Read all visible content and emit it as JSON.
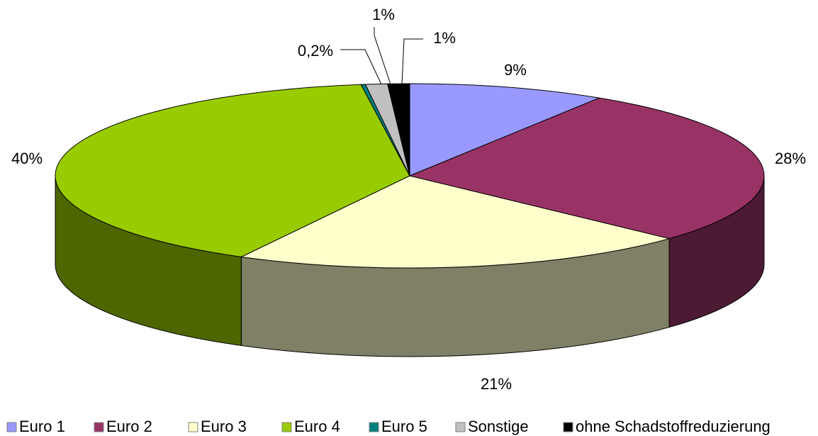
{
  "chart_data": {
    "type": "pie",
    "categories": [
      "Euro 1",
      "Euro 2",
      "Euro 3",
      "Euro 4",
      "Euro 5",
      "Sonstige",
      "ohne Schadstoffreduzierung"
    ],
    "values": [
      9,
      28,
      21,
      40,
      0.2,
      1,
      1
    ],
    "value_labels": [
      "9%",
      "28%",
      "21%",
      "40%",
      "0,2%",
      "1%",
      "1%"
    ],
    "colors": [
      "#9999ff",
      "#993366",
      "#ffffcc",
      "#99cc00",
      "#008080",
      "#c0c0c0",
      "#000000"
    ],
    "side_colors": [
      "#4d4d80",
      "#4d1a33",
      "#808066",
      "#4d6600",
      "#004040",
      "#606060",
      "#000000"
    ],
    "legend": "bottom"
  }
}
